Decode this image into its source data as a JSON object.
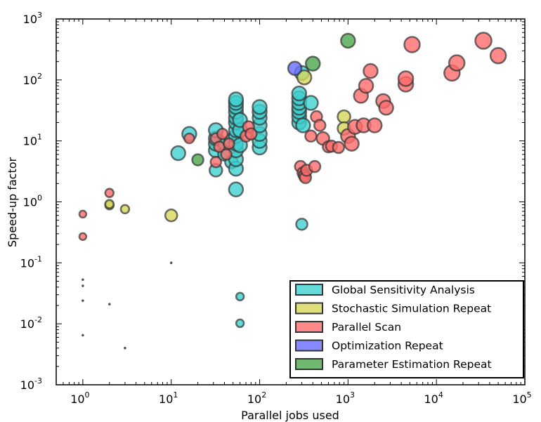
{
  "chart_data": {
    "type": "scatter",
    "xlabel": "Parallel jobs used",
    "ylabel": "Speed-up factor",
    "xscale": "log",
    "yscale": "log",
    "xlim": [
      0.5,
      100000
    ],
    "ylim": [
      0.001,
      1000
    ],
    "legend_position": "bottom-right",
    "x_ticks": [
      {
        "base": "10",
        "exp": "0",
        "value": 1
      },
      {
        "base": "10",
        "exp": "1",
        "value": 10
      },
      {
        "base": "10",
        "exp": "2",
        "value": 100
      },
      {
        "base": "10",
        "exp": "3",
        "value": 1000
      },
      {
        "base": "10",
        "exp": "4",
        "value": 10000
      },
      {
        "base": "10",
        "exp": "5",
        "value": 100000
      }
    ],
    "y_ticks": [
      {
        "base": "10",
        "exp": "-3",
        "value": 0.001
      },
      {
        "base": "10",
        "exp": "-2",
        "value": 0.01
      },
      {
        "base": "10",
        "exp": "-1",
        "value": 0.1
      },
      {
        "base": "10",
        "exp": "0",
        "value": 1
      },
      {
        "base": "10",
        "exp": "1",
        "value": 10
      },
      {
        "base": "10",
        "exp": "2",
        "value": 100
      },
      {
        "base": "10",
        "exp": "3",
        "value": 1000
      }
    ],
    "small_points": [
      {
        "x": 1,
        "y": 0.053
      },
      {
        "x": 1,
        "y": 0.042
      },
      {
        "x": 1,
        "y": 0.024
      },
      {
        "x": 1,
        "y": 0.0065
      },
      {
        "x": 2,
        "y": 0.021
      },
      {
        "x": 3,
        "y": 0.004
      },
      {
        "x": 10,
        "y": 0.1
      }
    ],
    "series": [
      {
        "name": "Global Sensitivity Analysis",
        "color": "#40d0d0",
        "points": [
          {
            "x": 12,
            "y": 6.3,
            "s": 1
          },
          {
            "x": 16,
            "y": 13,
            "s": 1
          },
          {
            "x": 32,
            "y": 3.3,
            "s": 0.9
          },
          {
            "x": 32,
            "y": 7,
            "s": 1
          },
          {
            "x": 32,
            "y": 9,
            "s": 1
          },
          {
            "x": 32,
            "y": 11,
            "s": 1
          },
          {
            "x": 32,
            "y": 15,
            "s": 1
          },
          {
            "x": 40,
            "y": 6,
            "s": 0.9
          },
          {
            "x": 40,
            "y": 9,
            "s": 0.9
          },
          {
            "x": 48,
            "y": 4.5,
            "s": 0.9
          },
          {
            "x": 48,
            "y": 10,
            "s": 1
          },
          {
            "x": 54,
            "y": 1.6,
            "s": 1
          },
          {
            "x": 54,
            "y": 3.5,
            "s": 1
          },
          {
            "x": 54,
            "y": 5,
            "s": 1
          },
          {
            "x": 54,
            "y": 7,
            "s": 1
          },
          {
            "x": 54,
            "y": 9,
            "s": 1
          },
          {
            "x": 54,
            "y": 12,
            "s": 1
          },
          {
            "x": 54,
            "y": 15,
            "s": 1
          },
          {
            "x": 54,
            "y": 20,
            "s": 1
          },
          {
            "x": 54,
            "y": 24,
            "s": 1
          },
          {
            "x": 54,
            "y": 30,
            "s": 1
          },
          {
            "x": 54,
            "y": 36,
            "s": 1
          },
          {
            "x": 54,
            "y": 42,
            "s": 1
          },
          {
            "x": 54,
            "y": 48,
            "s": 1
          },
          {
            "x": 60,
            "y": 8.5,
            "s": 1
          },
          {
            "x": 60,
            "y": 15,
            "s": 1
          },
          {
            "x": 60,
            "y": 22,
            "s": 1
          },
          {
            "x": 60,
            "y": 0.028,
            "s": 0.55
          },
          {
            "x": 60,
            "y": 0.0102,
            "s": 0.55
          },
          {
            "x": 100,
            "y": 7.8,
            "s": 1
          },
          {
            "x": 100,
            "y": 10,
            "s": 1
          },
          {
            "x": 100,
            "y": 13,
            "s": 1
          },
          {
            "x": 100,
            "y": 18,
            "s": 1
          },
          {
            "x": 100,
            "y": 24,
            "s": 1
          },
          {
            "x": 100,
            "y": 30,
            "s": 1
          },
          {
            "x": 100,
            "y": 36,
            "s": 1
          },
          {
            "x": 280,
            "y": 20,
            "s": 1
          },
          {
            "x": 280,
            "y": 25,
            "s": 1
          },
          {
            "x": 280,
            "y": 30,
            "s": 1
          },
          {
            "x": 280,
            "y": 35,
            "s": 1
          },
          {
            "x": 280,
            "y": 42,
            "s": 1
          },
          {
            "x": 280,
            "y": 50,
            "s": 1
          },
          {
            "x": 280,
            "y": 60,
            "s": 1
          },
          {
            "x": 300,
            "y": 0.43,
            "s": 0.8
          },
          {
            "x": 300,
            "y": 130,
            "s": 1
          },
          {
            "x": 310,
            "y": 18,
            "s": 1
          },
          {
            "x": 380,
            "y": 42,
            "s": 1
          }
        ]
      },
      {
        "name": "Stochastic Simulation Repeat",
        "color": "#d6d65a",
        "points": [
          {
            "x": 2,
            "y": 0.88,
            "s": 0.6
          },
          {
            "x": 2,
            "y": 0.92,
            "s": 0.6
          },
          {
            "x": 3,
            "y": 0.76,
            "s": 0.6
          },
          {
            "x": 10,
            "y": 0.6,
            "s": 0.85
          },
          {
            "x": 320,
            "y": 110,
            "s": 1
          },
          {
            "x": 900,
            "y": 25,
            "s": 0.9
          },
          {
            "x": 900,
            "y": 16,
            "s": 0.9
          }
        ]
      },
      {
        "name": "Parallel Scan",
        "color": "#ff6b6b",
        "points": [
          {
            "x": 1,
            "y": 0.63,
            "s": 0.5
          },
          {
            "x": 1,
            "y": 0.27,
            "s": 0.5
          },
          {
            "x": 2,
            "y": 1.4,
            "s": 0.6
          },
          {
            "x": 16,
            "y": 11,
            "s": 0.7
          },
          {
            "x": 32,
            "y": 4.5,
            "s": 0.75
          },
          {
            "x": 32,
            "y": 11,
            "s": 0.75
          },
          {
            "x": 35,
            "y": 8,
            "s": 0.75
          },
          {
            "x": 38,
            "y": 13,
            "s": 0.75
          },
          {
            "x": 42,
            "y": 6,
            "s": 0.75
          },
          {
            "x": 45,
            "y": 9,
            "s": 0.75
          },
          {
            "x": 70,
            "y": 12,
            "s": 0.8
          },
          {
            "x": 75,
            "y": 17,
            "s": 0.8
          },
          {
            "x": 80,
            "y": 13,
            "s": 0.8
          },
          {
            "x": 290,
            "y": 3.8,
            "s": 0.8
          },
          {
            "x": 310,
            "y": 3,
            "s": 0.8
          },
          {
            "x": 320,
            "y": 2.7,
            "s": 0.8
          },
          {
            "x": 330,
            "y": 2.5,
            "s": 0.8
          },
          {
            "x": 340,
            "y": 3.3,
            "s": 0.8
          },
          {
            "x": 380,
            "y": 12,
            "s": 0.8
          },
          {
            "x": 420,
            "y": 3.8,
            "s": 0.8
          },
          {
            "x": 440,
            "y": 25,
            "s": 0.8
          },
          {
            "x": 480,
            "y": 18,
            "s": 0.8
          },
          {
            "x": 520,
            "y": 11,
            "s": 0.9
          },
          {
            "x": 600,
            "y": 8,
            "s": 0.8
          },
          {
            "x": 650,
            "y": 8.2,
            "s": 0.8
          },
          {
            "x": 780,
            "y": 7.8,
            "s": 0.8
          },
          {
            "x": 1000,
            "y": 12,
            "s": 1
          },
          {
            "x": 1100,
            "y": 9,
            "s": 1
          },
          {
            "x": 1200,
            "y": 17,
            "s": 1
          },
          {
            "x": 1400,
            "y": 55,
            "s": 1
          },
          {
            "x": 1500,
            "y": 18,
            "s": 1
          },
          {
            "x": 1600,
            "y": 80,
            "s": 1
          },
          {
            "x": 1800,
            "y": 140,
            "s": 1
          },
          {
            "x": 2000,
            "y": 18,
            "s": 1
          },
          {
            "x": 2500,
            "y": 45,
            "s": 1
          },
          {
            "x": 2700,
            "y": 35,
            "s": 1
          },
          {
            "x": 4500,
            "y": 85,
            "s": 1.05
          },
          {
            "x": 4500,
            "y": 105,
            "s": 1.05
          },
          {
            "x": 5300,
            "y": 380,
            "s": 1.1
          },
          {
            "x": 15000,
            "y": 130,
            "s": 1.1
          },
          {
            "x": 17000,
            "y": 190,
            "s": 1.1
          },
          {
            "x": 34000,
            "y": 440,
            "s": 1.15
          },
          {
            "x": 50000,
            "y": 250,
            "s": 1.1
          }
        ]
      },
      {
        "name": "Optimization Repeat",
        "color": "#6a6aff",
        "points": [
          {
            "x": 250,
            "y": 155,
            "s": 0.95
          }
        ]
      },
      {
        "name": "Parameter Estimation Repeat",
        "color": "#4ca64c",
        "points": [
          {
            "x": 20,
            "y": 4.9,
            "s": 0.8
          },
          {
            "x": 400,
            "y": 185,
            "s": 1
          },
          {
            "x": 1000,
            "y": 440,
            "s": 1
          }
        ]
      }
    ]
  }
}
